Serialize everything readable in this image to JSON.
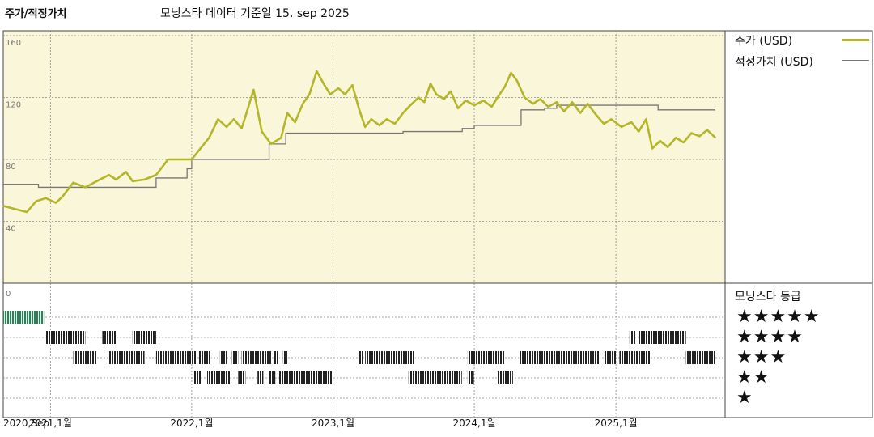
{
  "header": {
    "left_title": "주가/적정가치",
    "center_title": "모닝스타 데이터 기준일 15. sep 2025"
  },
  "colors": {
    "plot_bg": "#faf6d9",
    "price_line": "#b4b62a",
    "fair_value_line": "#777777",
    "rating_band_highlight": "#2e7d5b",
    "rating_bar": "#222222",
    "grid": "#8a8a8a"
  },
  "legend": {
    "price_label": "주가 (USD)",
    "fair_value_label": "적정가치 (USD)",
    "rating_title": "모닝스타 등급",
    "star_rows": [
      "★★★★★",
      "★★★★",
      "★★★",
      "★★",
      "★"
    ]
  },
  "chart_data": {
    "type": "line",
    "ylim": [
      0,
      160
    ],
    "y_ticks": [
      "160",
      "120",
      "80",
      "40",
      "0"
    ],
    "x_range": [
      "2020-09-01",
      "2025-09-15"
    ],
    "x_ticks": [
      {
        "label": "2020,Sep",
        "date": "2020-09-01"
      },
      {
        "label": "2021,1월",
        "date": "2021-01-01"
      },
      {
        "label": "2022,1월",
        "date": "2022-01-01"
      },
      {
        "label": "2023,1월",
        "date": "2023-01-01"
      },
      {
        "label": "2024,1월",
        "date": "2024-01-01"
      },
      {
        "label": "2025,1월",
        "date": "2025-01-01"
      }
    ],
    "grid": true,
    "legend_position": "right",
    "series": [
      {
        "name": "주가 (USD)",
        "points": [
          [
            "2020-09-01",
            50
          ],
          [
            "2020-10-01",
            48
          ],
          [
            "2020-11-01",
            46
          ],
          [
            "2020-11-25",
            53
          ],
          [
            "2020-12-20",
            55
          ],
          [
            "2021-01-15",
            52
          ],
          [
            "2021-02-01",
            56
          ],
          [
            "2021-03-01",
            65
          ],
          [
            "2021-04-01",
            62
          ],
          [
            "2021-05-01",
            66
          ],
          [
            "2021-06-01",
            70
          ],
          [
            "2021-06-20",
            67
          ],
          [
            "2021-07-15",
            72
          ],
          [
            "2021-08-01",
            66
          ],
          [
            "2021-09-01",
            67
          ],
          [
            "2021-10-01",
            70
          ],
          [
            "2021-11-01",
            80
          ],
          [
            "2021-12-01",
            80
          ],
          [
            "2022-01-01",
            80
          ],
          [
            "2022-01-20",
            86
          ],
          [
            "2022-02-15",
            94
          ],
          [
            "2022-03-10",
            106
          ],
          [
            "2022-04-01",
            101
          ],
          [
            "2022-04-20",
            106
          ],
          [
            "2022-05-10",
            100
          ],
          [
            "2022-05-25",
            112
          ],
          [
            "2022-06-10",
            125
          ],
          [
            "2022-07-01",
            98
          ],
          [
            "2022-07-25",
            90
          ],
          [
            "2022-08-20",
            94
          ],
          [
            "2022-09-05",
            110
          ],
          [
            "2022-09-25",
            104
          ],
          [
            "2022-10-15",
            116
          ],
          [
            "2022-11-01",
            122
          ],
          [
            "2022-11-20",
            137
          ],
          [
            "2022-12-10",
            128
          ],
          [
            "2022-12-25",
            122
          ],
          [
            "2023-01-15",
            126
          ],
          [
            "2023-02-01",
            122
          ],
          [
            "2023-02-20",
            128
          ],
          [
            "2023-03-10",
            112
          ],
          [
            "2023-03-25",
            101
          ],
          [
            "2023-04-10",
            106
          ],
          [
            "2023-05-01",
            102
          ],
          [
            "2023-05-20",
            106
          ],
          [
            "2023-06-10",
            103
          ],
          [
            "2023-07-01",
            110
          ],
          [
            "2023-07-20",
            115
          ],
          [
            "2023-08-10",
            120
          ],
          [
            "2023-08-25",
            117
          ],
          [
            "2023-09-10",
            129
          ],
          [
            "2023-09-25",
            122
          ],
          [
            "2023-10-15",
            119
          ],
          [
            "2023-11-01",
            124
          ],
          [
            "2023-11-20",
            113
          ],
          [
            "2023-12-10",
            118
          ],
          [
            "2024-01-01",
            115
          ],
          [
            "2024-01-25",
            118
          ],
          [
            "2024-02-15",
            114
          ],
          [
            "2024-03-01",
            120
          ],
          [
            "2024-03-20",
            127
          ],
          [
            "2024-04-05",
            136
          ],
          [
            "2024-04-20",
            131
          ],
          [
            "2024-05-10",
            120
          ],
          [
            "2024-06-01",
            116
          ],
          [
            "2024-06-20",
            119
          ],
          [
            "2024-07-10",
            114
          ],
          [
            "2024-08-01",
            117
          ],
          [
            "2024-08-20",
            111
          ],
          [
            "2024-09-10",
            117
          ],
          [
            "2024-10-01",
            110
          ],
          [
            "2024-10-20",
            116
          ],
          [
            "2024-11-10",
            109
          ],
          [
            "2024-12-01",
            103
          ],
          [
            "2024-12-20",
            106
          ],
          [
            "2025-01-15",
            101
          ],
          [
            "2025-02-10",
            104
          ],
          [
            "2025-03-01",
            98
          ],
          [
            "2025-03-20",
            106
          ],
          [
            "2025-04-05",
            87
          ],
          [
            "2025-04-25",
            92
          ],
          [
            "2025-05-15",
            88
          ],
          [
            "2025-06-05",
            94
          ],
          [
            "2025-06-25",
            91
          ],
          [
            "2025-07-15",
            97
          ],
          [
            "2025-08-05",
            95
          ],
          [
            "2025-08-25",
            99
          ],
          [
            "2025-09-15",
            94
          ]
        ]
      },
      {
        "name": "적정가치 (USD)",
        "step": true,
        "points": [
          [
            "2020-09-01",
            64
          ],
          [
            "2020-12-01",
            62
          ],
          [
            "2021-10-01",
            68
          ],
          [
            "2021-12-20",
            74
          ],
          [
            "2022-01-01",
            80
          ],
          [
            "2022-07-20",
            90
          ],
          [
            "2022-09-01",
            97
          ],
          [
            "2023-04-01",
            97
          ],
          [
            "2023-07-01",
            98
          ],
          [
            "2023-12-01",
            100
          ],
          [
            "2024-01-01",
            102
          ],
          [
            "2024-04-01",
            102
          ],
          [
            "2024-05-01",
            112
          ],
          [
            "2024-07-01",
            113
          ],
          [
            "2024-08-01",
            115
          ],
          [
            "2025-04-15",
            115
          ],
          [
            "2025-04-20",
            112
          ],
          [
            "2025-09-15",
            112
          ]
        ]
      }
    ],
    "rating_history": [
      {
        "stars": 5,
        "periods": [
          [
            "2020-09-01",
            "2020-12-15"
          ]
        ]
      },
      {
        "stars": 4,
        "periods": [
          [
            "2020-12-20",
            "2021-04-01"
          ],
          [
            "2021-05-15",
            "2021-06-20"
          ],
          [
            "2021-08-01",
            "2021-10-01"
          ],
          [
            "2025-02-05",
            "2025-02-20"
          ],
          [
            "2025-03-01",
            "2025-07-01"
          ]
        ]
      },
      {
        "stars": 3,
        "periods": [
          [
            "2021-03-01",
            "2021-05-01"
          ],
          [
            "2021-06-01",
            "2021-09-01"
          ],
          [
            "2021-10-01",
            "2022-01-15"
          ],
          [
            "2022-01-20",
            "2022-02-20"
          ],
          [
            "2022-03-15",
            "2022-04-01"
          ],
          [
            "2022-04-15",
            "2022-05-01"
          ],
          [
            "2022-05-10",
            "2022-07-25"
          ],
          [
            "2022-08-01",
            "2022-08-15"
          ],
          [
            "2022-08-25",
            "2022-09-05"
          ],
          [
            "2023-03-10",
            "2023-03-20"
          ],
          [
            "2023-03-25",
            "2023-08-01"
          ],
          [
            "2023-12-15",
            "2024-03-20"
          ],
          [
            "2024-04-25",
            "2024-11-20"
          ],
          [
            "2024-12-01",
            "2025-01-01"
          ],
          [
            "2025-01-10",
            "2025-04-01"
          ],
          [
            "2025-07-01",
            "2025-09-15"
          ]
        ]
      },
      {
        "stars": 2,
        "periods": [
          [
            "2022-01-05",
            "2022-01-25"
          ],
          [
            "2022-02-10",
            "2022-04-10"
          ],
          [
            "2022-05-01",
            "2022-05-20"
          ],
          [
            "2022-06-20",
            "2022-07-05"
          ],
          [
            "2022-07-20",
            "2022-08-05"
          ],
          [
            "2022-08-15",
            "2022-12-31"
          ],
          [
            "2023-07-15",
            "2023-11-30"
          ],
          [
            "2023-12-15",
            "2023-12-31"
          ],
          [
            "2024-03-01",
            "2024-04-10"
          ]
        ]
      }
    ]
  }
}
